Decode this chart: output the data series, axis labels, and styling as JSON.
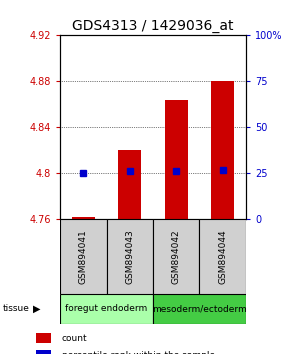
{
  "title": "GDS4313 / 1429036_at",
  "samples": [
    "GSM894041",
    "GSM894043",
    "GSM894042",
    "GSM894044"
  ],
  "red_values": [
    4.762,
    4.82,
    4.864,
    4.88
  ],
  "blue_values": [
    4.8,
    4.802,
    4.802,
    4.803
  ],
  "ymin": 4.76,
  "ymax": 4.92,
  "yticks_left": [
    4.76,
    4.8,
    4.84,
    4.88,
    4.92
  ],
  "yticks_right": [
    0,
    25,
    50,
    75,
    100
  ],
  "yticks_right_labels": [
    "0",
    "25",
    "50",
    "75",
    "100%"
  ],
  "tissue_groups": [
    {
      "label": "foregut endoderm",
      "samples": [
        0,
        1
      ],
      "color": "#aaffaa"
    },
    {
      "label": "mesoderm/ectoderm",
      "samples": [
        2,
        3
      ],
      "color": "#44cc44"
    }
  ],
  "bar_color": "#cc0000",
  "dot_color": "#0000cc",
  "bar_width": 0.5,
  "left_color": "#cc0000",
  "right_color": "#0000cc",
  "title_fontsize": 10,
  "tick_fontsize": 7,
  "sample_label_fontsize": 6.5,
  "tissue_label_fontsize": 6.5,
  "legend_fontsize": 6.5
}
